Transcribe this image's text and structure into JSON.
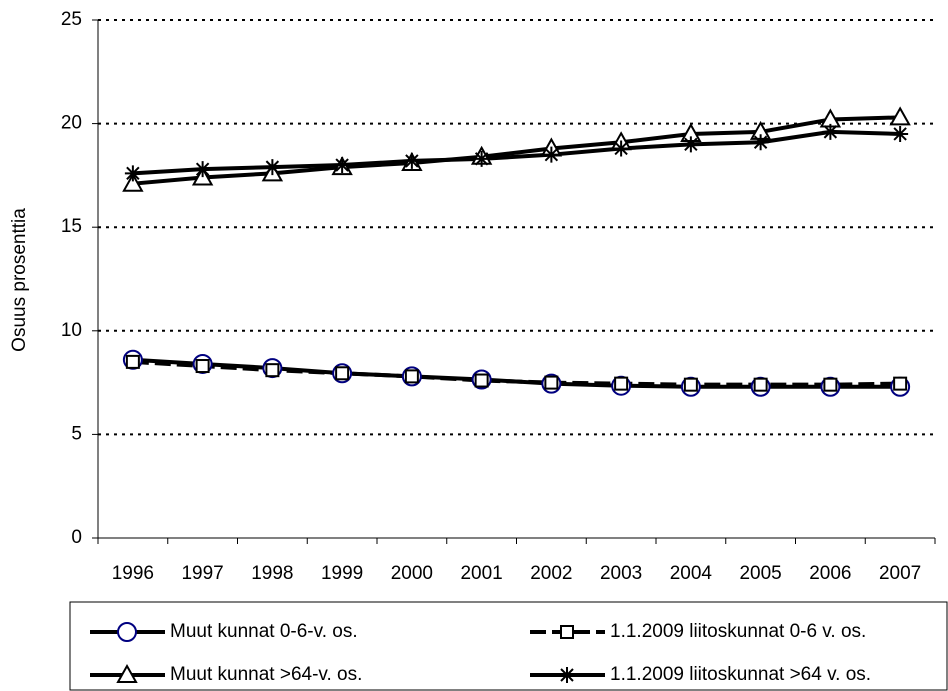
{
  "chart_data": {
    "type": "line",
    "y_label": "Osuus prosenttia",
    "categories": [
      "1996",
      "1997",
      "1998",
      "1999",
      "2000",
      "2001",
      "2002",
      "2003",
      "2004",
      "2005",
      "2006",
      "2007"
    ],
    "series": [
      {
        "name": "Muut kunnat 0-6-v. os.",
        "color": "#000000",
        "marker": "circle",
        "marker_color": "#000080",
        "line_style": "solid",
        "values": [
          8.6,
          8.4,
          8.2,
          7.95,
          7.8,
          7.65,
          7.45,
          7.35,
          7.3,
          7.3,
          7.3,
          7.3
        ]
      },
      {
        "name": "1.1.2009 liitoskunnat 0-6 v. os.",
        "color": "#000000",
        "marker": "square",
        "marker_color": "#000000",
        "line_style": "dashed",
        "values": [
          8.5,
          8.3,
          8.1,
          7.95,
          7.8,
          7.6,
          7.5,
          7.45,
          7.4,
          7.4,
          7.4,
          7.45
        ]
      },
      {
        "name": "Muut kunnat >64-v. os.",
        "color": "#000000",
        "marker": "triangle",
        "marker_color": "#000000",
        "line_style": "solid",
        "values": [
          17.1,
          17.4,
          17.6,
          17.9,
          18.1,
          18.4,
          18.8,
          19.1,
          19.5,
          19.6,
          20.2,
          20.3
        ]
      },
      {
        "name": "1.1.2009 liitoskunnat >64 v. os.",
        "color": "#000000",
        "marker": "star",
        "marker_color": "#000000",
        "line_style": "solid",
        "values": [
          17.6,
          17.8,
          17.9,
          18.0,
          18.2,
          18.3,
          18.5,
          18.8,
          19.0,
          19.1,
          19.6,
          19.5
        ]
      }
    ],
    "ylim": [
      0,
      25
    ],
    "yticks": [
      0,
      5,
      10,
      15,
      20,
      25
    ],
    "grid": true,
    "legend": "bottom"
  }
}
